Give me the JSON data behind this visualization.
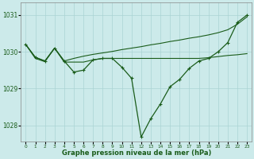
{
  "title": "Graphe pression niveau de la mer (hPa)",
  "bg_color": "#cceaea",
  "line_color": "#1a5c1a",
  "grid_color": "#aad4d4",
  "ylim": [
    1027.55,
    1031.35
  ],
  "yticks": [
    1028,
    1029,
    1030,
    1031
  ],
  "xlim": [
    -0.5,
    23.5
  ],
  "xticks": [
    0,
    1,
    2,
    3,
    4,
    5,
    6,
    7,
    8,
    9,
    10,
    11,
    12,
    13,
    14,
    15,
    16,
    17,
    18,
    19,
    20,
    21,
    22,
    23
  ],
  "hours": [
    0,
    1,
    2,
    3,
    4,
    5,
    6,
    7,
    8,
    9,
    10,
    11,
    12,
    13,
    14,
    15,
    16,
    17,
    18,
    19,
    20,
    21,
    22,
    23
  ],
  "series_main": [
    1030.2,
    1029.85,
    1029.75,
    1030.1,
    1029.75,
    1029.45,
    1029.5,
    1029.78,
    1029.82,
    1029.82,
    1029.58,
    1029.28,
    1027.68,
    1028.18,
    1028.58,
    1029.05,
    1029.25,
    1029.55,
    1029.75,
    1029.82,
    1030.0,
    1030.25,
    1030.8,
    1031.0
  ],
  "series_flat1": [
    1030.2,
    1029.82,
    1029.73,
    1030.1,
    1029.72,
    1029.72,
    1029.72,
    1029.78,
    1029.82,
    1029.82,
    1029.82,
    1029.82,
    1029.82,
    1029.82,
    1029.82,
    1029.82,
    1029.82,
    1029.82,
    1029.82,
    1029.84,
    1029.87,
    1029.9,
    1029.92,
    1029.95
  ],
  "series_upper": [
    1030.2,
    1029.85,
    1029.75,
    1030.1,
    1029.75,
    1029.82,
    1029.88,
    1029.93,
    1029.97,
    1030.01,
    1030.06,
    1030.1,
    1030.14,
    1030.19,
    1030.23,
    1030.28,
    1030.32,
    1030.37,
    1030.41,
    1030.46,
    1030.52,
    1030.6,
    1030.75,
    1030.95
  ]
}
